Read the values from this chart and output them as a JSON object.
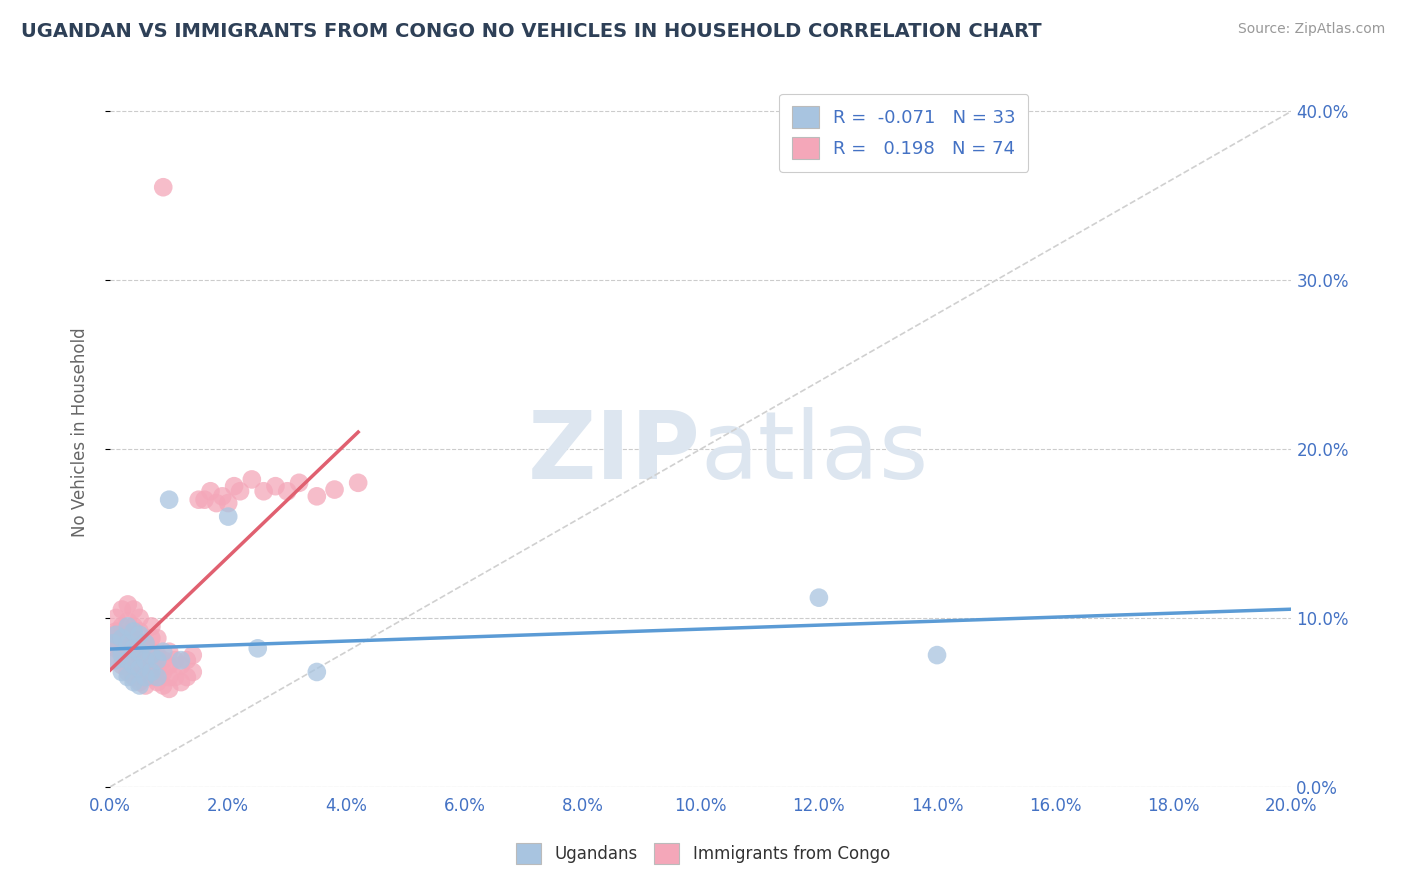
{
  "title": "UGANDAN VS IMMIGRANTS FROM CONGO NO VEHICLES IN HOUSEHOLD CORRELATION CHART",
  "source": "Source: ZipAtlas.com",
  "xlim": [
    0.0,
    0.2
  ],
  "ylim": [
    0.0,
    0.42
  ],
  "ylabel": "No Vehicles in Household",
  "legend_label1": "Ugandans",
  "legend_label2": "Immigrants from Congo",
  "R1": -0.071,
  "N1": 33,
  "R2": 0.198,
  "N2": 74,
  "color_blue": "#a8c4e0",
  "color_pink": "#f4a7b9",
  "color_blue_text": "#4472c4",
  "regression_line_blue": "#5b9bd5",
  "regression_line_pink": "#e06070",
  "regression_line_gray": "#d0d0d0",
  "background_color": "#ffffff",
  "title_color": "#2e4057",
  "ugandans_x": [
    0.0005,
    0.001,
    0.001,
    0.002,
    0.002,
    0.002,
    0.003,
    0.003,
    0.003,
    0.003,
    0.004,
    0.004,
    0.004,
    0.004,
    0.005,
    0.005,
    0.005,
    0.005,
    0.006,
    0.006,
    0.006,
    0.007,
    0.007,
    0.008,
    0.008,
    0.009,
    0.01,
    0.012,
    0.02,
    0.025,
    0.035,
    0.12,
    0.14
  ],
  "ugandans_y": [
    0.085,
    0.075,
    0.09,
    0.068,
    0.078,
    0.088,
    0.065,
    0.075,
    0.085,
    0.095,
    0.062,
    0.072,
    0.082,
    0.092,
    0.06,
    0.07,
    0.08,
    0.09,
    0.065,
    0.075,
    0.085,
    0.068,
    0.078,
    0.065,
    0.075,
    0.08,
    0.17,
    0.075,
    0.16,
    0.082,
    0.068,
    0.112,
    0.078
  ],
  "congo_x": [
    0.0003,
    0.0005,
    0.001,
    0.001,
    0.001,
    0.001,
    0.002,
    0.002,
    0.002,
    0.002,
    0.002,
    0.003,
    0.003,
    0.003,
    0.003,
    0.003,
    0.003,
    0.004,
    0.004,
    0.004,
    0.004,
    0.004,
    0.004,
    0.005,
    0.005,
    0.005,
    0.005,
    0.005,
    0.005,
    0.006,
    0.006,
    0.006,
    0.006,
    0.007,
    0.007,
    0.007,
    0.007,
    0.007,
    0.008,
    0.008,
    0.008,
    0.008,
    0.009,
    0.009,
    0.009,
    0.009,
    0.01,
    0.01,
    0.01,
    0.01,
    0.011,
    0.011,
    0.012,
    0.012,
    0.013,
    0.013,
    0.014,
    0.014,
    0.015,
    0.016,
    0.017,
    0.018,
    0.019,
    0.02,
    0.021,
    0.022,
    0.024,
    0.026,
    0.028,
    0.03,
    0.032,
    0.035,
    0.038,
    0.042
  ],
  "congo_y": [
    0.085,
    0.09,
    0.075,
    0.082,
    0.092,
    0.1,
    0.072,
    0.08,
    0.088,
    0.095,
    0.105,
    0.068,
    0.075,
    0.083,
    0.09,
    0.098,
    0.108,
    0.065,
    0.072,
    0.08,
    0.088,
    0.095,
    0.105,
    0.062,
    0.07,
    0.078,
    0.085,
    0.092,
    0.1,
    0.06,
    0.068,
    0.075,
    0.085,
    0.065,
    0.072,
    0.08,
    0.088,
    0.095,
    0.062,
    0.07,
    0.078,
    0.088,
    0.06,
    0.068,
    0.075,
    0.355,
    0.058,
    0.065,
    0.072,
    0.08,
    0.065,
    0.075,
    0.062,
    0.072,
    0.065,
    0.075,
    0.068,
    0.078,
    0.17,
    0.17,
    0.175,
    0.168,
    0.172,
    0.168,
    0.178,
    0.175,
    0.182,
    0.175,
    0.178,
    0.175,
    0.18,
    0.172,
    0.176,
    0.18
  ]
}
